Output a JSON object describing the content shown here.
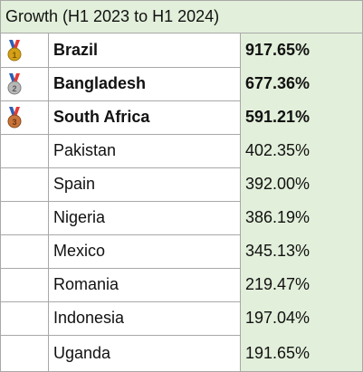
{
  "header": {
    "title": "Growth (H1 2023 to H1 2024)"
  },
  "colors": {
    "header_bg": "#e2efda",
    "value_bg": "#e2efda",
    "gold": "#d4a017",
    "silver": "#a6a6a6",
    "bronze": "#c8743a"
  },
  "rows": [
    {
      "country": "Brazil",
      "growth": "917.65%",
      "medal": "gold-medal-icon"
    },
    {
      "country": "Bangladesh",
      "growth": "677.36%",
      "medal": "silver-medal-icon"
    },
    {
      "country": "South Africa",
      "growth": "591.21%",
      "medal": "bronze-medal-icon"
    },
    {
      "country": "Pakistan",
      "growth": "402.35%"
    },
    {
      "country": "Spain",
      "growth": "392.00%"
    },
    {
      "country": "Nigeria",
      "growth": "386.19%"
    },
    {
      "country": "Mexico",
      "growth": "345.13%"
    },
    {
      "country": "Romania",
      "growth": "219.47%"
    },
    {
      "country": "Indonesia",
      "growth": "197.04%"
    },
    {
      "country": "Uganda",
      "growth": "191.65%"
    }
  ]
}
